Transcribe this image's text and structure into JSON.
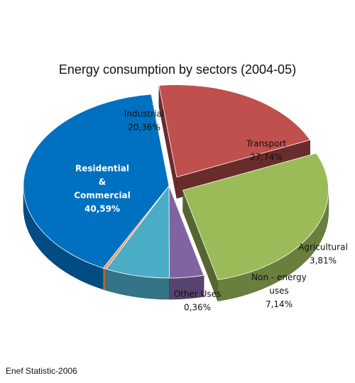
{
  "chart_data": {
    "type": "pie",
    "title": "Energy consumption by sectors (2004-05)",
    "source": "Enef Statistic-2006",
    "slices": [
      {
        "label_lines": [
          "Industrial"
        ],
        "value_text": "20,36%",
        "value": 20.36,
        "color": "#c0504d",
        "exploded": true
      },
      {
        "label_lines": [
          "Transport"
        ],
        "value_text": "27,74%",
        "value": 27.74,
        "color": "#9bbb59",
        "exploded": true
      },
      {
        "label_lines": [
          "Agricultural"
        ],
        "value_text": "3,81%",
        "value": 3.81,
        "color": "#8064a2",
        "exploded": false
      },
      {
        "label_lines": [
          "Non - energy",
          "uses"
        ],
        "value_text": "7,14%",
        "value": 7.14,
        "color": "#4bacc6",
        "exploded": false
      },
      {
        "label_lines": [
          "Other  Uses"
        ],
        "value_text": "0,36%",
        "value": 0.36,
        "color": "#f79646",
        "exploded": false
      },
      {
        "label_lines": [
          "Residential",
          "&",
          "Commercial"
        ],
        "value_text": "40,59%",
        "value": 40.59,
        "color": "#0070c0",
        "exploded": false
      }
    ]
  }
}
